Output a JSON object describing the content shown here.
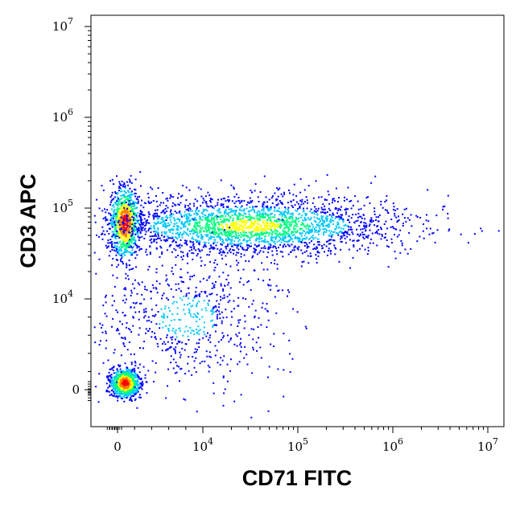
{
  "chart_data": {
    "type": "scatter",
    "subtype": "flow-cytometry-density-dot-plot",
    "xlabel": "CD71 FITC",
    "ylabel": "CD3 APC",
    "x_scale": "biexponential",
    "y_scale": "biexponential",
    "x_ticks": [
      {
        "value": 0,
        "base": "0",
        "exp": ""
      },
      {
        "value": 10000,
        "base": "10",
        "exp": "4"
      },
      {
        "value": 100000,
        "base": "10",
        "exp": "5"
      },
      {
        "value": 1000000,
        "base": "10",
        "exp": "6"
      },
      {
        "value": 10000000,
        "base": "10",
        "exp": "7"
      }
    ],
    "y_ticks": [
      {
        "value": 0,
        "base": "0",
        "exp": ""
      },
      {
        "value": 10000,
        "base": "10",
        "exp": "4"
      },
      {
        "value": 100000,
        "base": "10",
        "exp": "5"
      },
      {
        "value": 1000000,
        "base": "10",
        "exp": "6"
      },
      {
        "value": 10000000,
        "base": "10",
        "exp": "7"
      }
    ],
    "color_scale": [
      "#0000ff",
      "#00c8ff",
      "#00ff80",
      "#ffff00",
      "#ff8000",
      "#ff0000"
    ],
    "populations": [
      {
        "name": "",
        "x_center": 800,
        "y_center": 800,
        "spread": "tight",
        "peak_density": "high"
      },
      {
        "name": "",
        "x_center": 800,
        "y_center": 70000,
        "spread": "tight",
        "peak_density": "high"
      },
      {
        "name": "",
        "x_center": 30000,
        "y_center": 65000,
        "spread": "broad",
        "peak_density": "medium"
      },
      {
        "name": "",
        "x_center": 8000,
        "y_center": 8000,
        "spread": "sparse",
        "peak_density": "low"
      }
    ]
  }
}
